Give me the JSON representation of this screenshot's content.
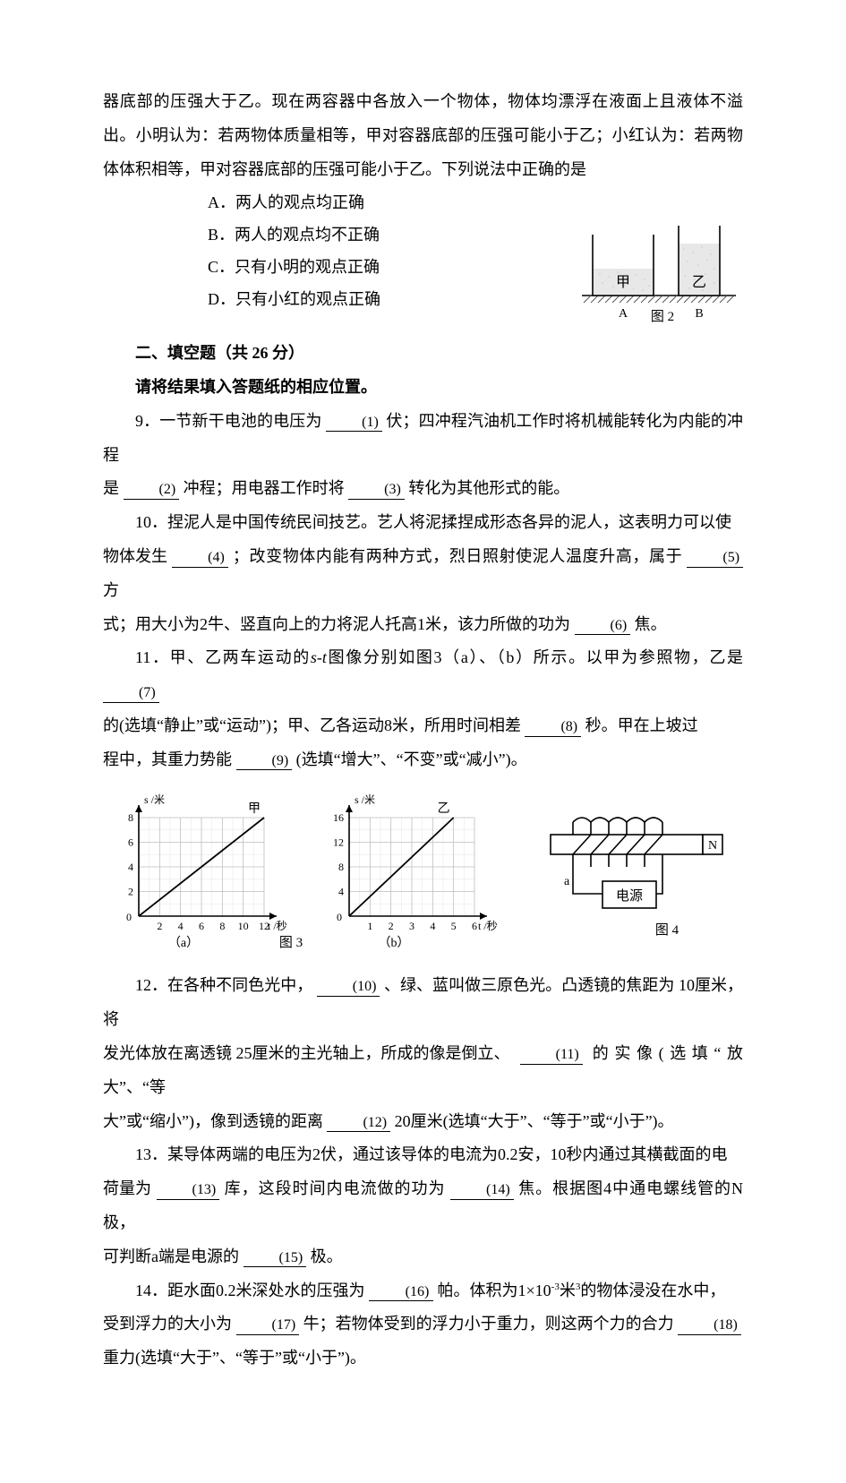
{
  "intro": {
    "l1": "器底部的压强大于乙。现在两容器中各放入一个物体，物体均漂浮在液面上且液体不溢",
    "l2": "出。小明认为：若两物体质量相等，甲对容器底部的压强可能小于乙；小红认为：若两物",
    "l3": "体体积相等，甲对容器底部的压强可能小于乙。下列说法中正确的是"
  },
  "choices": {
    "a": "A．两人的观点均正确",
    "b": "B．两人的观点均不正确",
    "c": "C．只有小明的观点正确",
    "d": "D．只有小红的观点正确"
  },
  "section2": {
    "title": "二、填空题（共 26 分）",
    "subtitle": "请将结果填入答题纸的相应位置。"
  },
  "q9": {
    "pre": "9．一节新干电池的电压为",
    "b1": "(1)",
    "mid1": "伏；四冲程汽油机工作时将机械能转化为内能的冲程",
    "l2a": "是",
    "b2": "(2)",
    "mid2": "冲程；用电器工作时将",
    "b3": "(3)",
    "end": "转化为其他形式的能。"
  },
  "q10": {
    "l1": "10．捏泥人是中国传统民间技艺。艺人将泥揉捏成形态各异的泥人，这表明力可以使",
    "l2a": "物体发生",
    "b4": "(4)",
    "l2b": "；改变物体内能有两种方式，烈日照射使泥人温度升高，属于",
    "b5": "(5)",
    "l2c": "方",
    "l3a": "式；用大小为2牛、竖直向上的力将泥人托高1米，该力所做的功为",
    "b6": "(6)",
    "l3b": "焦。"
  },
  "q11": {
    "l1a": "11．甲、乙两车运动的",
    "l1it": "s-t",
    "l1b": "图像分别如图3（a）、（b）所示。以甲为参照物，乙是",
    "b7": "(7)",
    "l2a": "的(选填“静止”或“运动”)；甲、乙各运动8米，所用时间相差",
    "b8": "(8)",
    "l2b": "秒。甲在上坡过",
    "l3a": "程中，其重力势能",
    "b9": "(9)",
    "l3b": "(选填“增大”、“不变”或“减小”)。"
  },
  "q12": {
    "l1a": "12．在各种不同色光中，",
    "b10": "(10)",
    "l1b": "、绿、蓝叫做三原色光。凸透镜的焦距为 10厘米，将",
    "l2a": "发光体放在离透镜 25厘米的主光轴上，所成的像是倒立、",
    "b11": "(11)",
    "l2b": "的实像(选填“放大”、“等",
    "l3a": "大”或“缩小”)，像到透镜的距离",
    "b12": "(12)",
    "l3b": "20厘米(选填“大于”、“等于”或“小于”)。"
  },
  "q13": {
    "l1": "13．某导体两端的电压为2伏，通过该导体的电流为0.2安，10秒内通过其横截面的电",
    "l2a": "荷量为",
    "b13": "(13)",
    "l2b": "库，这段时间内电流做的功为",
    "b14": "(14)",
    "l2c": "焦。根据图4中通电螺线管的N极，",
    "l3a": "可判断a端是电源的",
    "b15": "(15)",
    "l3b": "极。"
  },
  "q14": {
    "l1a": "14．距水面0.2米深处水的压强为",
    "b16": "(16)",
    "l1b": "帕。体积为1×10",
    "sup": "-3",
    "l1c": "米",
    "cube": "3",
    "l1d": "的物体浸没在水中，",
    "l2a": "受到浮力的大小为",
    "b17": "(17)",
    "l2b": "牛；若物体受到的浮力小于重力，则这两个力的合力",
    "b18": "(18)",
    "l3": "重力(选填“大于”、“等于”或“小于”)。"
  },
  "fig2": {
    "jia": "甲",
    "yi": "乙",
    "a": "A",
    "b": "B",
    "caption": "图 2",
    "water_fill": "#e8e8e8",
    "hatch": "#555555",
    "stroke": "#000000",
    "bg": "#ffffff",
    "water_levels": {
      "jia": 30,
      "yi": 16
    }
  },
  "fig3a": {
    "title": "s /米",
    "xlabel": "t /秒",
    "caption": "（a）",
    "boxcaption": "图 3",
    "name": "甲",
    "xmax": 12,
    "xstep": 2,
    "xticks": [
      2,
      4,
      6,
      8,
      10,
      12
    ],
    "ymax": 8,
    "ystep": 2,
    "yticks": [
      2,
      4,
      6,
      8
    ],
    "line": [
      [
        0,
        0
      ],
      [
        12,
        8
      ]
    ],
    "grid_color": "#c0c0c0",
    "minor_color": "#e5e5e5",
    "ink": "#000000",
    "bg": "#ffffff",
    "fontsize": 12
  },
  "fig3b": {
    "title": "s /米",
    "xlabel": "t /秒",
    "name": "乙",
    "caption": "（b）",
    "xmax": 6,
    "xstep": 1,
    "xticks": [
      1,
      2,
      3,
      4,
      5,
      6
    ],
    "ymax": 16,
    "ystep": 4,
    "yticks": [
      4,
      8,
      12,
      16
    ],
    "line": [
      [
        0,
        0
      ],
      [
        5,
        16
      ]
    ],
    "grid_color": "#c0c0c0",
    "minor_color": "#e5e5e5",
    "ink": "#000000",
    "bg": "#ffffff",
    "fontsize": 12
  },
  "fig4": {
    "N": "N",
    "a": "a",
    "power": "电源",
    "caption": "图 4",
    "ink": "#000000",
    "bg": "#ffffff",
    "fontsize": 14
  }
}
